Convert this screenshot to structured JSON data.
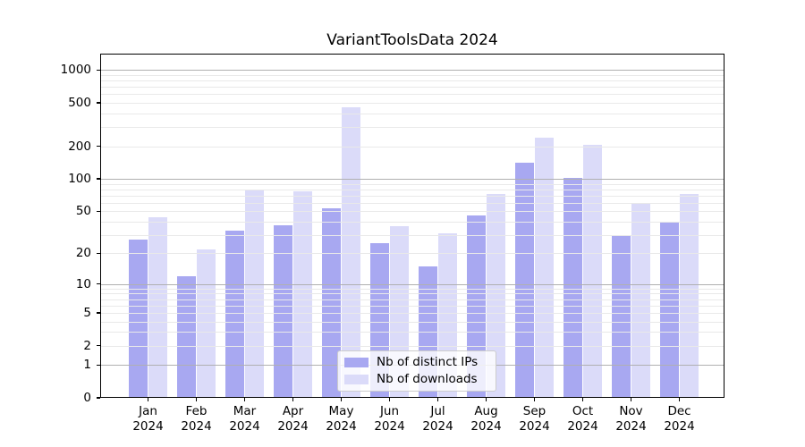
{
  "title": "VariantToolsData 2024",
  "chart_data": {
    "type": "bar",
    "title": "VariantToolsData 2024",
    "categories": [
      "Jan",
      "Feb",
      "Mar",
      "Apr",
      "May",
      "Jun",
      "Jul",
      "Aug",
      "Sep",
      "Oct",
      "Nov",
      "Dec"
    ],
    "category_year": "2024",
    "series": [
      {
        "name": "Nb of distinct IPs",
        "color": "#a8a8f1",
        "values": [
          27,
          12,
          33,
          37,
          53,
          25,
          15,
          46,
          140,
          103,
          29,
          40
        ]
      },
      {
        "name": "Nb of downloads",
        "color": "#dbdbf9",
        "values": [
          44,
          22,
          79,
          77,
          455,
          36,
          31,
          72,
          240,
          206,
          59,
          73
        ]
      }
    ],
    "yscale": "log1p",
    "yticks": [
      0,
      1,
      2,
      5,
      10,
      20,
      50,
      100,
      200,
      500,
      1000
    ],
    "ylim": [
      0,
      1413
    ],
    "grid": "on",
    "legend_position": "lower center",
    "colors": {
      "major_grid": "#b0b0b0",
      "minor_grid": "#e9e9e9",
      "axis": "#000000",
      "background": "#ffffff"
    }
  }
}
